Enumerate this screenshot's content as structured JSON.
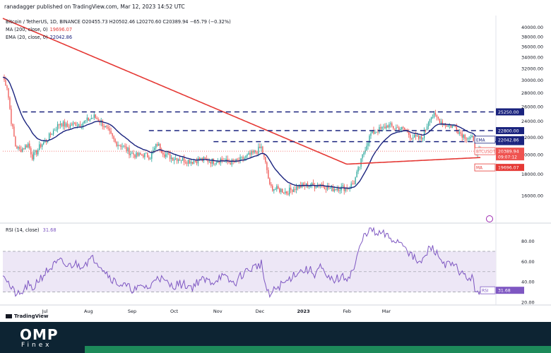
{
  "header": {
    "published": "ranadagger published on TradingView.com, Mar 12, 2023 14:52 UTC"
  },
  "legend": {
    "symbol": "Bitcoin / TetherUS, 1D, BINANCE",
    "ohlc": "O20455.73  H20502.46  L20270.60  C20389.94  −65.79 (−0.32%)",
    "ma_label": "MA (200, close, 0)",
    "ma_value": "19696.07",
    "ema_label": "EMA (20, close, 0)",
    "ema_value": "22042.86",
    "rsi_label": "RSI (14, close)",
    "rsi_value": "31.68"
  },
  "branding": {
    "tradingview": "TradingView",
    "logo_main": "OMP",
    "logo_sub": "Finex"
  },
  "colors": {
    "up": "#26a69a",
    "down": "#ef5350",
    "ma": "#e53935",
    "ema": "#1a237e",
    "level": "#1a237e",
    "rsi": "#7e57c2",
    "rsi_band": "#ede7f6"
  },
  "chart_data": [
    {
      "type": "candlestick",
      "title": "Bitcoin / TetherUS, 1D, BINANCE",
      "ylim": [
        14000,
        42000
      ],
      "y_scale": "log",
      "yticks": [
        16000,
        18000,
        20000,
        22000,
        24000,
        26000,
        28000,
        30000,
        32000,
        34000,
        36000,
        38000,
        40000
      ],
      "x_labels": [
        "Jul",
        "Aug",
        "Sep",
        "Oct",
        "Nov",
        "Dec",
        "2023",
        "Feb",
        "Mar"
      ],
      "close_path": [
        [
          0,
          30500
        ],
        [
          3,
          29000
        ],
        [
          6,
          24000
        ],
        [
          9,
          21000
        ],
        [
          12,
          20500
        ],
        [
          15,
          20800
        ],
        [
          18,
          21200
        ],
        [
          21,
          19800
        ],
        [
          24,
          20300
        ],
        [
          27,
          21100
        ],
        [
          31,
          21600
        ],
        [
          36,
          22800
        ],
        [
          41,
          23800
        ],
        [
          46,
          23300
        ],
        [
          51,
          23700
        ],
        [
          55,
          23600
        ],
        [
          60,
          24100
        ],
        [
          65,
          24600
        ],
        [
          70,
          23900
        ],
        [
          75,
          22700
        ],
        [
          80,
          21400
        ],
        [
          85,
          21000
        ],
        [
          90,
          20300
        ],
        [
          95,
          19900
        ],
        [
          100,
          20000
        ],
        [
          105,
          19800
        ],
        [
          110,
          21200
        ],
        [
          115,
          20100
        ],
        [
          120,
          19700
        ],
        [
          125,
          19600
        ],
        [
          130,
          19400
        ],
        [
          135,
          19300
        ],
        [
          140,
          19500
        ],
        [
          145,
          19400
        ],
        [
          150,
          19300
        ],
        [
          155,
          19500
        ],
        [
          160,
          19200
        ],
        [
          165,
          19200
        ],
        [
          170,
          19500
        ],
        [
          175,
          19900
        ],
        [
          180,
          20300
        ],
        [
          184,
          20800
        ],
        [
          188,
          18400
        ],
        [
          190,
          16800
        ],
        [
          194,
          16600
        ],
        [
          198,
          16500
        ],
        [
          202,
          16300
        ],
        [
          206,
          16600
        ],
        [
          210,
          16800
        ],
        [
          214,
          16900
        ],
        [
          218,
          16950
        ],
        [
          222,
          16900
        ],
        [
          226,
          17100
        ],
        [
          230,
          16800
        ],
        [
          234,
          16600
        ],
        [
          238,
          16700
        ],
        [
          242,
          16700
        ],
        [
          246,
          16700
        ],
        [
          250,
          17200
        ],
        [
          254,
          18800
        ],
        [
          258,
          20800
        ],
        [
          262,
          22400
        ],
        [
          266,
          22800
        ],
        [
          270,
          23000
        ],
        [
          274,
          23500
        ],
        [
          278,
          23200
        ],
        [
          282,
          23100
        ],
        [
          286,
          22900
        ],
        [
          290,
          22200
        ],
        [
          294,
          21900
        ],
        [
          298,
          21800
        ],
        [
          301,
          23000
        ],
        [
          304,
          24600
        ],
        [
          307,
          24700
        ],
        [
          310,
          24300
        ],
        [
          313,
          23800
        ],
        [
          316,
          23500
        ],
        [
          319,
          23400
        ],
        [
          322,
          23300
        ],
        [
          325,
          22600
        ],
        [
          328,
          22200
        ],
        [
          331,
          22000
        ],
        [
          334,
          21800
        ],
        [
          337,
          20300
        ],
        [
          340,
          20390
        ]
      ],
      "ma": {
        "name": "MA",
        "period": 200,
        "last": 19696.07
      },
      "ema": {
        "name": "EMA",
        "period": 20,
        "last": 22042.86
      },
      "levels": [
        {
          "value": 25250,
          "label": "25250.00"
        },
        {
          "value": 22800,
          "label": "22800.00"
        },
        {
          "value": 21480,
          "label": "21480.00"
        }
      ],
      "price_tags": [
        {
          "name": "EMA",
          "value": "22042.86"
        },
        {
          "name": "BTCUSDT",
          "value": "20389.94",
          "countdown": "09:07:12"
        },
        {
          "name": "MA",
          "value": "19696.07"
        }
      ]
    },
    {
      "type": "line",
      "title": "RSI (14, close)",
      "ylim": [
        20,
        95
      ],
      "yticks": [
        20,
        40,
        60,
        80
      ],
      "bands": [
        30,
        50,
        70
      ],
      "last": 31.68,
      "series": [
        {
          "name": "RSI",
          "points": [
            [
              0,
              50
            ],
            [
              3,
              42
            ],
            [
              6,
              33
            ],
            [
              9,
              29
            ],
            [
              12,
              26
            ],
            [
              15,
              32
            ],
            [
              18,
              37
            ],
            [
              21,
              31
            ],
            [
              24,
              40
            ],
            [
              27,
              44
            ],
            [
              31,
              50
            ],
            [
              36,
              56
            ],
            [
              41,
              60
            ],
            [
              46,
              55
            ],
            [
              51,
              58
            ],
            [
              55,
              56
            ],
            [
              60,
              60
            ],
            [
              65,
              63
            ],
            [
              70,
              56
            ],
            [
              75,
              47
            ],
            [
              80,
              40
            ],
            [
              85,
              37
            ],
            [
              90,
              34
            ],
            [
              95,
              32
            ],
            [
              100,
              36
            ],
            [
              105,
              34
            ],
            [
              110,
              47
            ],
            [
              115,
              40
            ],
            [
              120,
              36
            ],
            [
              125,
              38
            ],
            [
              130,
              37
            ],
            [
              135,
              35
            ],
            [
              140,
              42
            ],
            [
              145,
              41
            ],
            [
              150,
              40
            ],
            [
              155,
              46
            ],
            [
              160,
              42
            ],
            [
              165,
              38
            ],
            [
              170,
              47
            ],
            [
              175,
              52
            ],
            [
              180,
              55
            ],
            [
              184,
              58
            ],
            [
              188,
              30
            ],
            [
              190,
              26
            ],
            [
              194,
              33
            ],
            [
              198,
              37
            ],
            [
              202,
              40
            ],
            [
              206,
              46
            ],
            [
              210,
              50
            ],
            [
              214,
              51
            ],
            [
              218,
              52
            ],
            [
              222,
              48
            ],
            [
              226,
              55
            ],
            [
              230,
              44
            ],
            [
              234,
              42
            ],
            [
              238,
              43
            ],
            [
              242,
              44
            ],
            [
              246,
              45
            ],
            [
              250,
              53
            ],
            [
              254,
              73
            ],
            [
              258,
              88
            ],
            [
              262,
              92
            ],
            [
              266,
              86
            ],
            [
              270,
              88
            ],
            [
              274,
              84
            ],
            [
              278,
              81
            ],
            [
              282,
              80
            ],
            [
              286,
              77
            ],
            [
              290,
              67
            ],
            [
              294,
              61
            ],
            [
              298,
              58
            ],
            [
              301,
              66
            ],
            [
              304,
              74
            ],
            [
              307,
              72
            ],
            [
              310,
              65
            ],
            [
              313,
              60
            ],
            [
              316,
              57
            ],
            [
              319,
              56
            ],
            [
              322,
              55
            ],
            [
              325,
              51
            ],
            [
              328,
              46
            ],
            [
              331,
              44
            ],
            [
              334,
              43
            ],
            [
              337,
              31
            ],
            [
              340,
              31.68
            ]
          ]
        }
      ]
    }
  ]
}
